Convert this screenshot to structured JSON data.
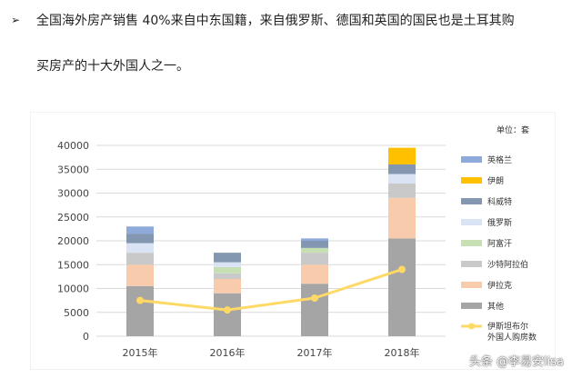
{
  "text": {
    "bullet": "➢",
    "line1": "全国海外房产销售 40%来自中东国籍，来自俄罗斯、德国和英国的国民也是土耳其购",
    "line2": "买房产的十大外国人之一。",
    "watermark": "头条 @李易安lisa"
  },
  "chart_data": {
    "type": "bar",
    "unit_label": "单位：套",
    "categories": [
      "2015年",
      "2016年",
      "2017年",
      "2018年"
    ],
    "ylim": [
      0,
      40000
    ],
    "yticks": [
      0,
      5000,
      10000,
      15000,
      20000,
      25000,
      30000,
      35000,
      40000
    ],
    "ytick_labels": [
      "0",
      "5000",
      "10000",
      "15000",
      "20000",
      "25000",
      "30000",
      "35000",
      "40000"
    ],
    "series": [
      {
        "name": "其他",
        "color": "#a5a5a5",
        "values": [
          10500,
          9000,
          11000,
          20500
        ]
      },
      {
        "name": "伊拉克",
        "color": "#f8cbad",
        "values": [
          4500,
          3000,
          4000,
          8500
        ]
      },
      {
        "name": "沙特阿拉伯",
        "color": "#c9c9c9",
        "values": [
          2500,
          1200,
          2500,
          3000
        ]
      },
      {
        "name": "阿富汗",
        "color": "#c6e0b4",
        "values": [
          0,
          1300,
          1000,
          0
        ]
      },
      {
        "name": "俄罗斯",
        "color": "#dae3f3",
        "values": [
          2000,
          1000,
          0,
          2000
        ]
      },
      {
        "name": "科威特",
        "color": "#8497b0",
        "values": [
          2000,
          2000,
          1500,
          2000
        ]
      },
      {
        "name": "伊朗",
        "color": "#ffc000",
        "values": [
          0,
          0,
          0,
          3500
        ]
      },
      {
        "name": "英格兰",
        "color": "#8eaadb",
        "values": [
          1500,
          0,
          500,
          0
        ]
      }
    ],
    "line_series": {
      "name": "伊斯坦布尔外国人购房数",
      "color": "#ffd966",
      "values": [
        7500,
        5500,
        8000,
        14000
      ]
    }
  }
}
